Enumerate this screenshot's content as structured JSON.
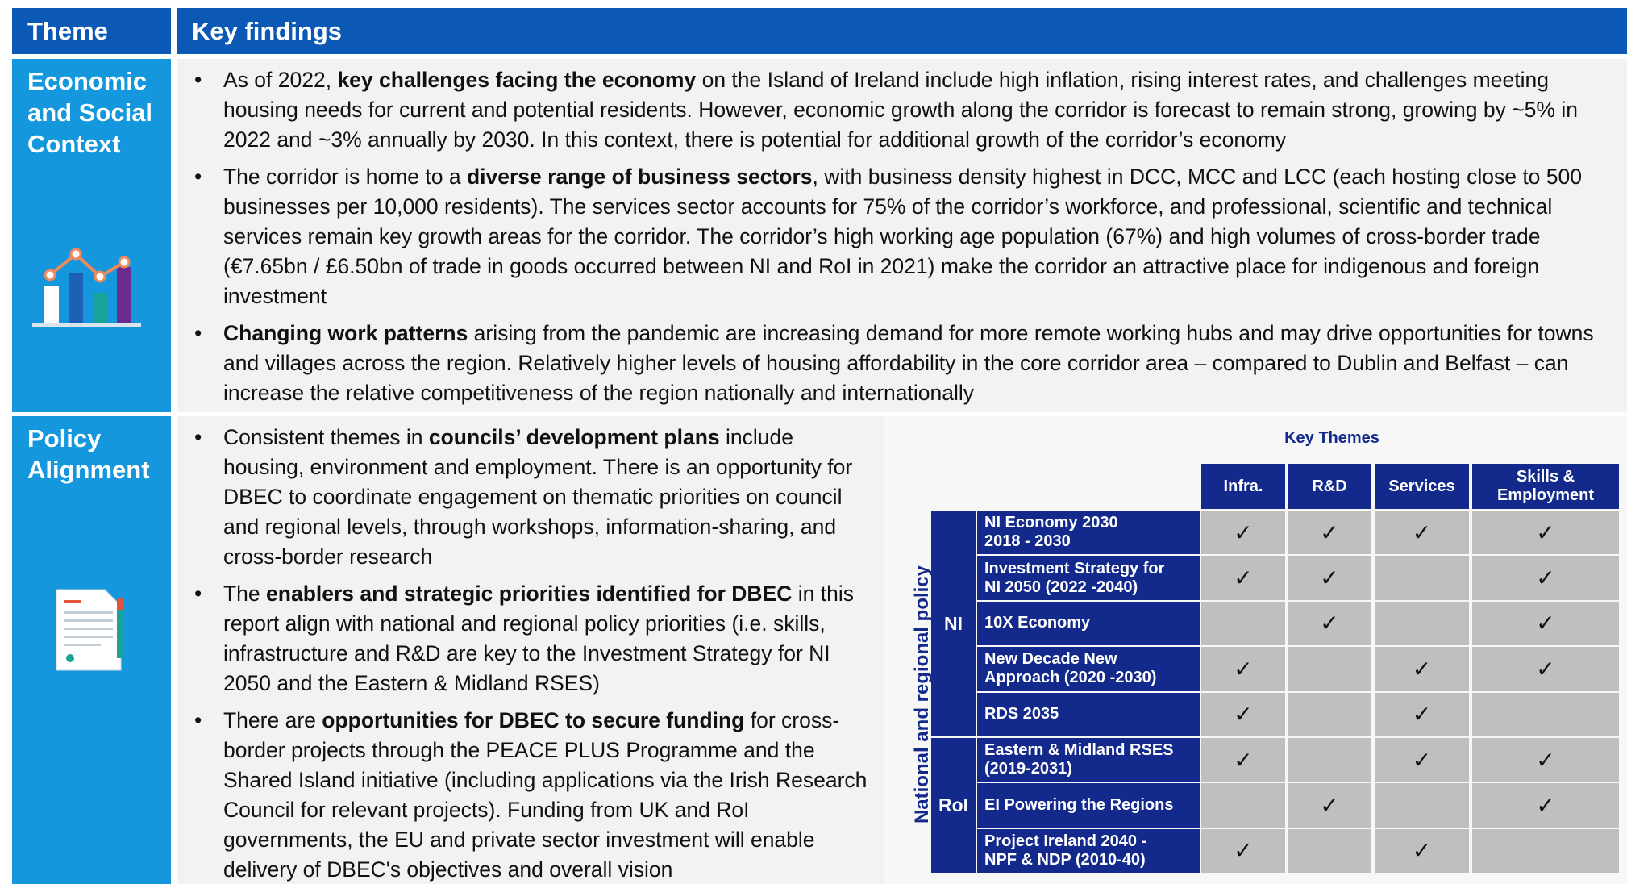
{
  "header": {
    "theme": "Theme",
    "findings": "Key findings"
  },
  "sections": [
    {
      "theme": "Economic and Social Context",
      "bullets": [
        {
          "pre": "As of 2022, ",
          "bold": "key challenges facing the economy",
          "post": " on the Island of Ireland include high inflation, rising interest rates, and challenges meeting housing needs for current and potential residents. However, economic growth along the corridor is forecast to remain strong, growing by ~5% in 2022 and ~3% annually by 2030. In this context, there is potential for additional growth of the corridor’s economy"
        },
        {
          "pre": "The corridor is home to a ",
          "bold": "diverse range of business sectors",
          "post": ", with business density highest in DCC, MCC and LCC (each hosting close to 500 businesses per 10,000 residents). The services sector accounts for 75% of the corridor’s workforce, and professional, scientific and technical services remain key growth areas for the corridor. The corridor’s high working age population (67%) and high volumes of cross-border trade (€7.65bn / £6.50bn of trade in goods occurred between NI and RoI in 2021) make the corridor an attractive place for indigenous and foreign investment"
        },
        {
          "pre": "",
          "bold": "Changing work patterns",
          "post": " arising from the pandemic are increasing demand for more remote working hubs and may drive opportunities for towns and villages across the region. Relatively higher levels of housing affordability in the core corridor area – compared to Dublin and Belfast – can increase the relative competitiveness of the region nationally and internationally"
        }
      ]
    },
    {
      "theme": "Policy Alignment",
      "bullets": [
        {
          "pre": "Consistent themes in ",
          "bold": "councils’ development plans",
          "post": " include housing, environment and employment. There is an opportunity for DBEC to coordinate engagement on thematic priorities on council and regional levels, through workshops, information-sharing, and cross-border research"
        },
        {
          "pre": "The ",
          "bold": "enablers and strategic priorities identified for DBEC",
          "post": " in this report align with national and regional policy priorities (i.e. skills, infrastructure and R&D are key to the Investment Strategy for NI 2050 and the Eastern & Midland RSES)"
        },
        {
          "pre": "There are ",
          "bold": "opportunities for DBEC to secure funding",
          "post": " for cross-border projects through the PEACE PLUS Programme and the Shared Island initiative (including applications via the Irish Research Council for relevant projects). Funding from UK and RoI governments, the EU and private sector investment will enable delivery of DBEC's objectives and overall vision"
        }
      ]
    }
  ],
  "policy_table": {
    "title": "Key Themes",
    "side_label": "National and regional policy",
    "check": "✓",
    "columns": [
      "Infra.",
      "R&D",
      "Services",
      "Skills &\nEmployment"
    ],
    "groups": [
      {
        "name": "NI",
        "rows": [
          {
            "name": "NI Economy 2030\n2018 - 2030",
            "checks": [
              true,
              true,
              true,
              true
            ]
          },
          {
            "name": "Investment Strategy for\nNI 2050 (2022 -2040)",
            "checks": [
              true,
              true,
              false,
              true
            ]
          },
          {
            "name": "10X Economy",
            "checks": [
              false,
              true,
              false,
              true
            ]
          },
          {
            "name": "New Decade New\nApproach (2020 -2030)",
            "checks": [
              true,
              false,
              true,
              true
            ]
          },
          {
            "name": "RDS 2035",
            "checks": [
              true,
              false,
              true,
              false
            ]
          }
        ]
      },
      {
        "name": "RoI",
        "rows": [
          {
            "name": "Eastern & Midland RSES\n(2019-2031)",
            "checks": [
              true,
              false,
              true,
              true
            ]
          },
          {
            "name": "EI Powering the Regions",
            "checks": [
              false,
              true,
              false,
              true
            ]
          },
          {
            "name": "Project Ireland 2040 -\nNPF & NDP (2010-40)",
            "checks": [
              true,
              false,
              true,
              false
            ]
          }
        ]
      }
    ]
  }
}
